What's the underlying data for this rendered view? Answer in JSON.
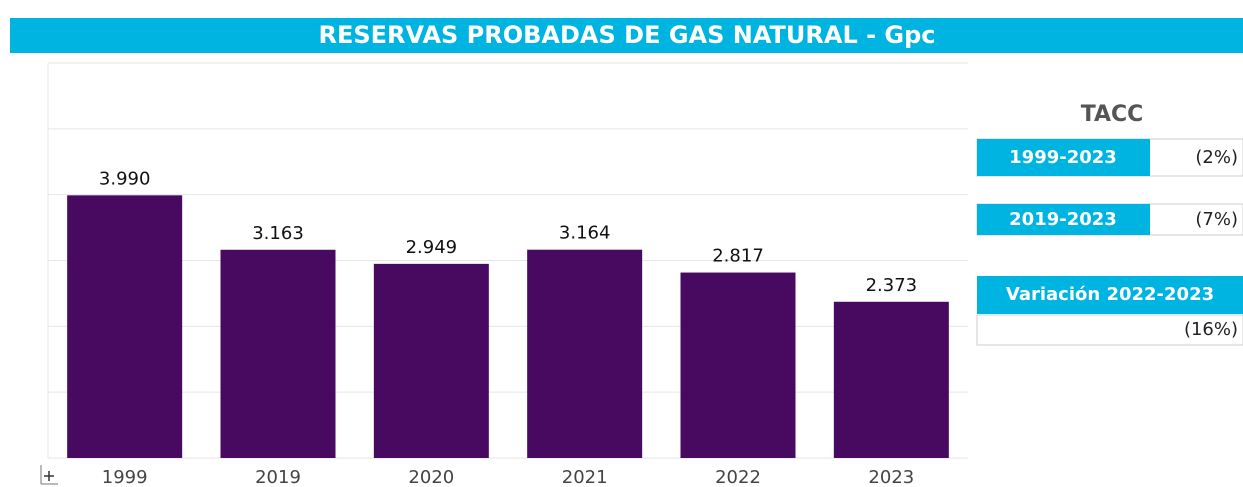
{
  "chart_data": {
    "type": "bar",
    "title": "RESERVAS PROBADAS DE GAS NATURAL - Gpc",
    "categories": [
      "1999",
      "2019",
      "2020",
      "2021",
      "2022",
      "2023"
    ],
    "values": [
      3990,
      3163,
      2949,
      3164,
      2817,
      2373
    ],
    "value_labels": [
      "3.990",
      "3.163",
      "2.949",
      "3.164",
      "2.817",
      "2.373"
    ],
    "color": "#470a60",
    "ylim": [
      0,
      6000
    ],
    "yticks": [
      0,
      1000,
      2000,
      3000,
      4000,
      5000,
      6000
    ],
    "grid": true
  },
  "panel": {
    "title": "TACC",
    "rows": [
      {
        "label": "1999-2023",
        "value": "(2%)"
      },
      {
        "label": "2019-2023",
        "value": "(7%)"
      }
    ],
    "variation": {
      "label": "Variación 2022-2023",
      "value": "(16%)"
    }
  }
}
